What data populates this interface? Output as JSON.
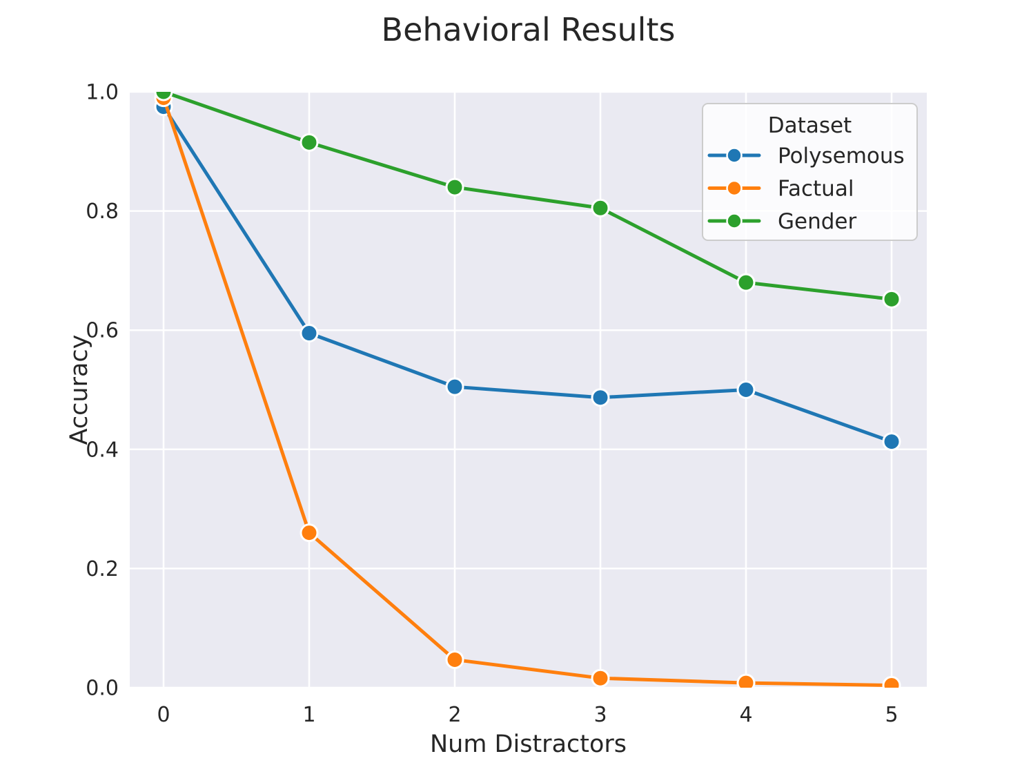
{
  "title": "Behavioral Results",
  "chart_data": {
    "type": "line",
    "title": "Behavioral Results",
    "xlabel": "Num Distractors",
    "ylabel": "Accuracy",
    "x": [
      0,
      1,
      2,
      3,
      4,
      5
    ],
    "xtick_labels": [
      "0",
      "1",
      "2",
      "3",
      "4",
      "5"
    ],
    "yticks": [
      0.0,
      0.2,
      0.4,
      0.6,
      0.8,
      1.0
    ],
    "ytick_labels": [
      "0.0",
      "0.2",
      "0.4",
      "0.6",
      "0.8",
      "1.0"
    ],
    "xlim": [
      -0.25,
      5.25
    ],
    "ylim": [
      0.0,
      1.0
    ],
    "grid": true,
    "legend": {
      "title": "Dataset",
      "position": "upper right"
    },
    "series": [
      {
        "name": "Polysemous",
        "color": "#1f77b4",
        "values": [
          0.975,
          0.595,
          0.505,
          0.487,
          0.5,
          0.413
        ]
      },
      {
        "name": "Factual",
        "color": "#ff7f0e",
        "values": [
          0.99,
          0.26,
          0.047,
          0.016,
          0.008,
          0.004
        ]
      },
      {
        "name": "Gender",
        "color": "#2ca02c",
        "values": [
          1.0,
          0.915,
          0.84,
          0.805,
          0.68,
          0.652
        ]
      }
    ],
    "style": {
      "plot_background": "#eaeaf2",
      "grid_color": "#ffffff",
      "text_color": "#262626",
      "legend_border_color": "#cccccc",
      "marker_edge_color": "#ffffff"
    }
  }
}
